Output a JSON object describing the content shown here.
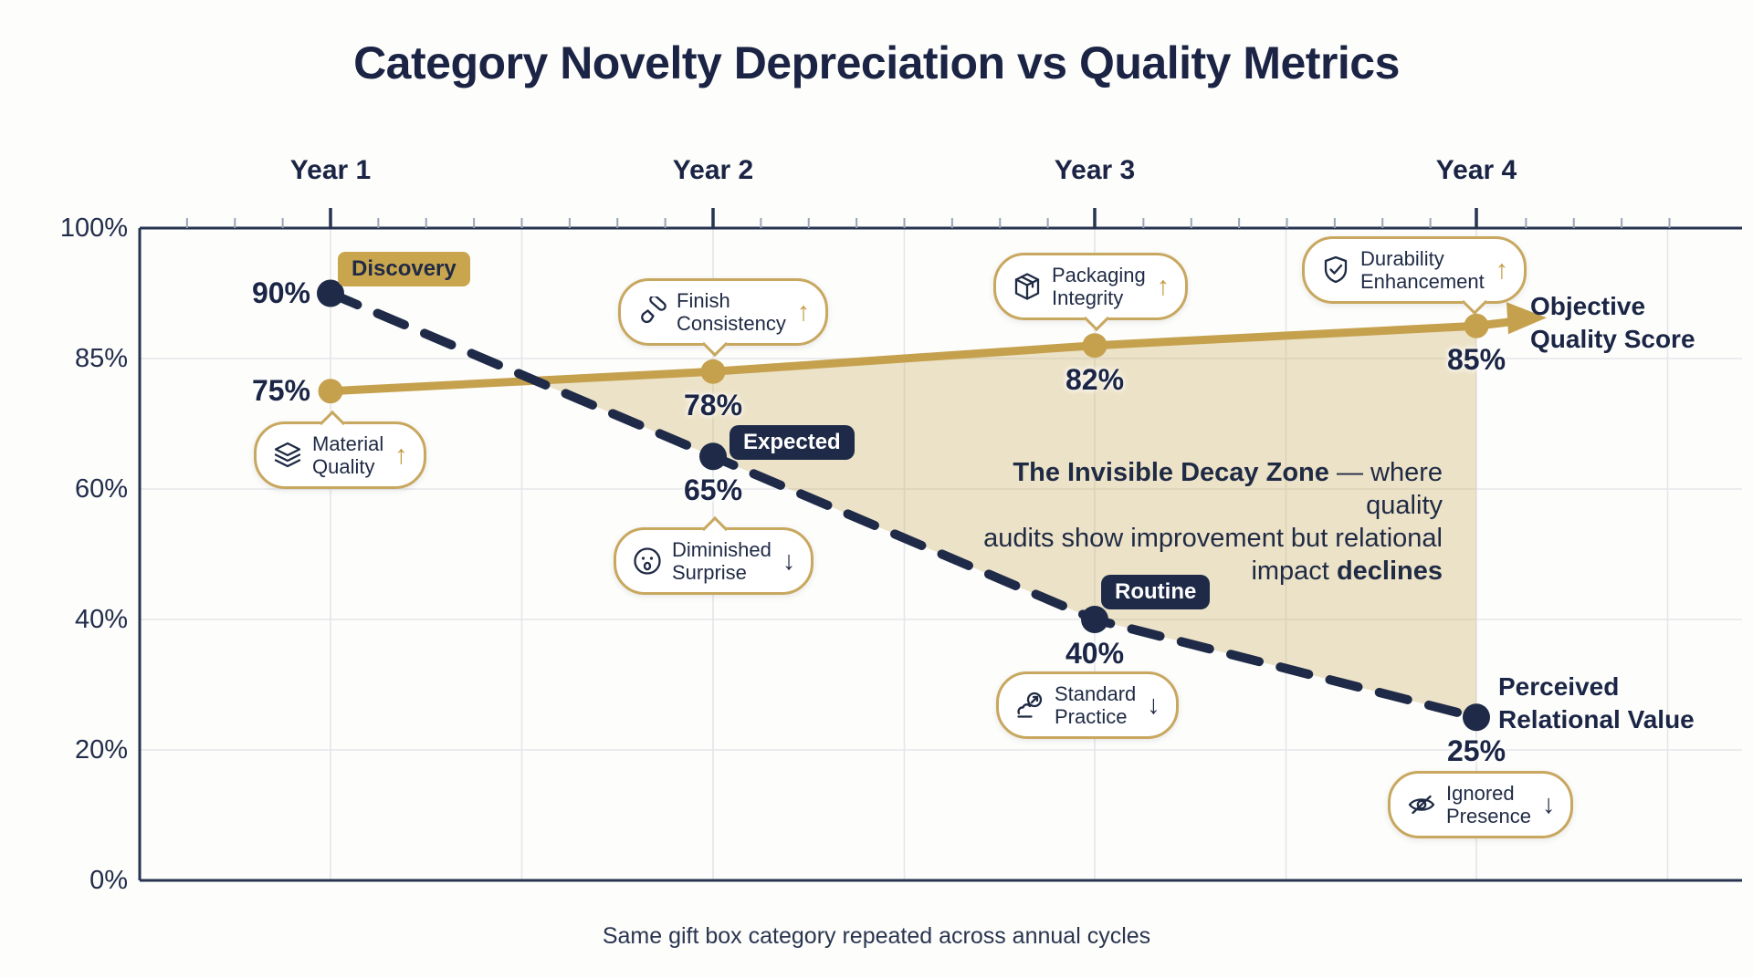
{
  "title": "Category Novelty Depreciation vs Quality Metrics",
  "caption": "Same gift box category repeated across annual cycles",
  "glyphs": {
    "up": "↑",
    "down": "↓"
  },
  "colors": {
    "navy": "#1e2a47",
    "gold": "#c5a14e",
    "gold_border": "#c8a75f",
    "zone_fill": "rgba(199,164,80,0.30)",
    "grid": "#e4e6ea",
    "axis": "#273450",
    "background": "#fdfdfb"
  },
  "chart_data": {
    "type": "line",
    "title": "Category Novelty Depreciation vs Quality Metrics",
    "categories": [
      "Year 1",
      "Year 2",
      "Year 3",
      "Year 4"
    ],
    "y_ticks": [
      "100%",
      "85%",
      "60%",
      "40%",
      "20%",
      "0%"
    ],
    "ylim": [
      0,
      100
    ],
    "grid": "on",
    "series": [
      {
        "name": "Objective Quality Score",
        "values": [
          75,
          78,
          82,
          85
        ],
        "point_labels": [
          "75%",
          "78%",
          "82%",
          "85%"
        ],
        "color": "#c5a14e",
        "style": "solid-arrow"
      },
      {
        "name": "Perceived Relational Value",
        "values": [
          90,
          65,
          40,
          25
        ],
        "point_labels": [
          "90%",
          "65%",
          "40%",
          "25%"
        ],
        "color": "#1e2a47",
        "style": "dashed"
      }
    ],
    "zone_text": {
      "line1_bold": "The Invisible Decay Zone",
      "line1_rest": " — where quality",
      "line2": "audits show improvement but relational",
      "line3_rest": "impact ",
      "line3_bold": "declines"
    },
    "annotations": {
      "stage_badges": [
        {
          "text": "Discovery",
          "style": "gold",
          "year": "Year 1"
        },
        {
          "text": "Expected",
          "style": "navy",
          "year": "Year 2"
        },
        {
          "text": "Routine",
          "style": "navy",
          "year": "Year 3"
        }
      ],
      "callouts": [
        {
          "line1": "Material",
          "line2": "Quality",
          "icon": "layers-icon",
          "arrow": "up",
          "year": "Year 1"
        },
        {
          "line1": "Finish",
          "line2": "Consistency",
          "icon": "paintbrush-icon",
          "arrow": "up",
          "year": "Year 2"
        },
        {
          "line1": "Diminished",
          "line2": "Surprise",
          "icon": "surprised-face-icon",
          "arrow": "down",
          "year": "Year 2"
        },
        {
          "line1": "Packaging",
          "line2": "Integrity",
          "icon": "package-icon",
          "arrow": "up",
          "year": "Year 3"
        },
        {
          "line1": "Standard",
          "line2": "Practice",
          "icon": "stamp-icon",
          "arrow": "down",
          "year": "Year 3"
        },
        {
          "line1": "Durability",
          "line2": "Enhancement",
          "icon": "shield-check-icon",
          "arrow": "up",
          "year": "Year 4"
        },
        {
          "line1": "Ignored",
          "line2": "Presence",
          "icon": "eye-off-icon",
          "arrow": "down",
          "year": "Year 4"
        }
      ]
    },
    "caption": "Same gift box category repeated across annual cycles"
  }
}
